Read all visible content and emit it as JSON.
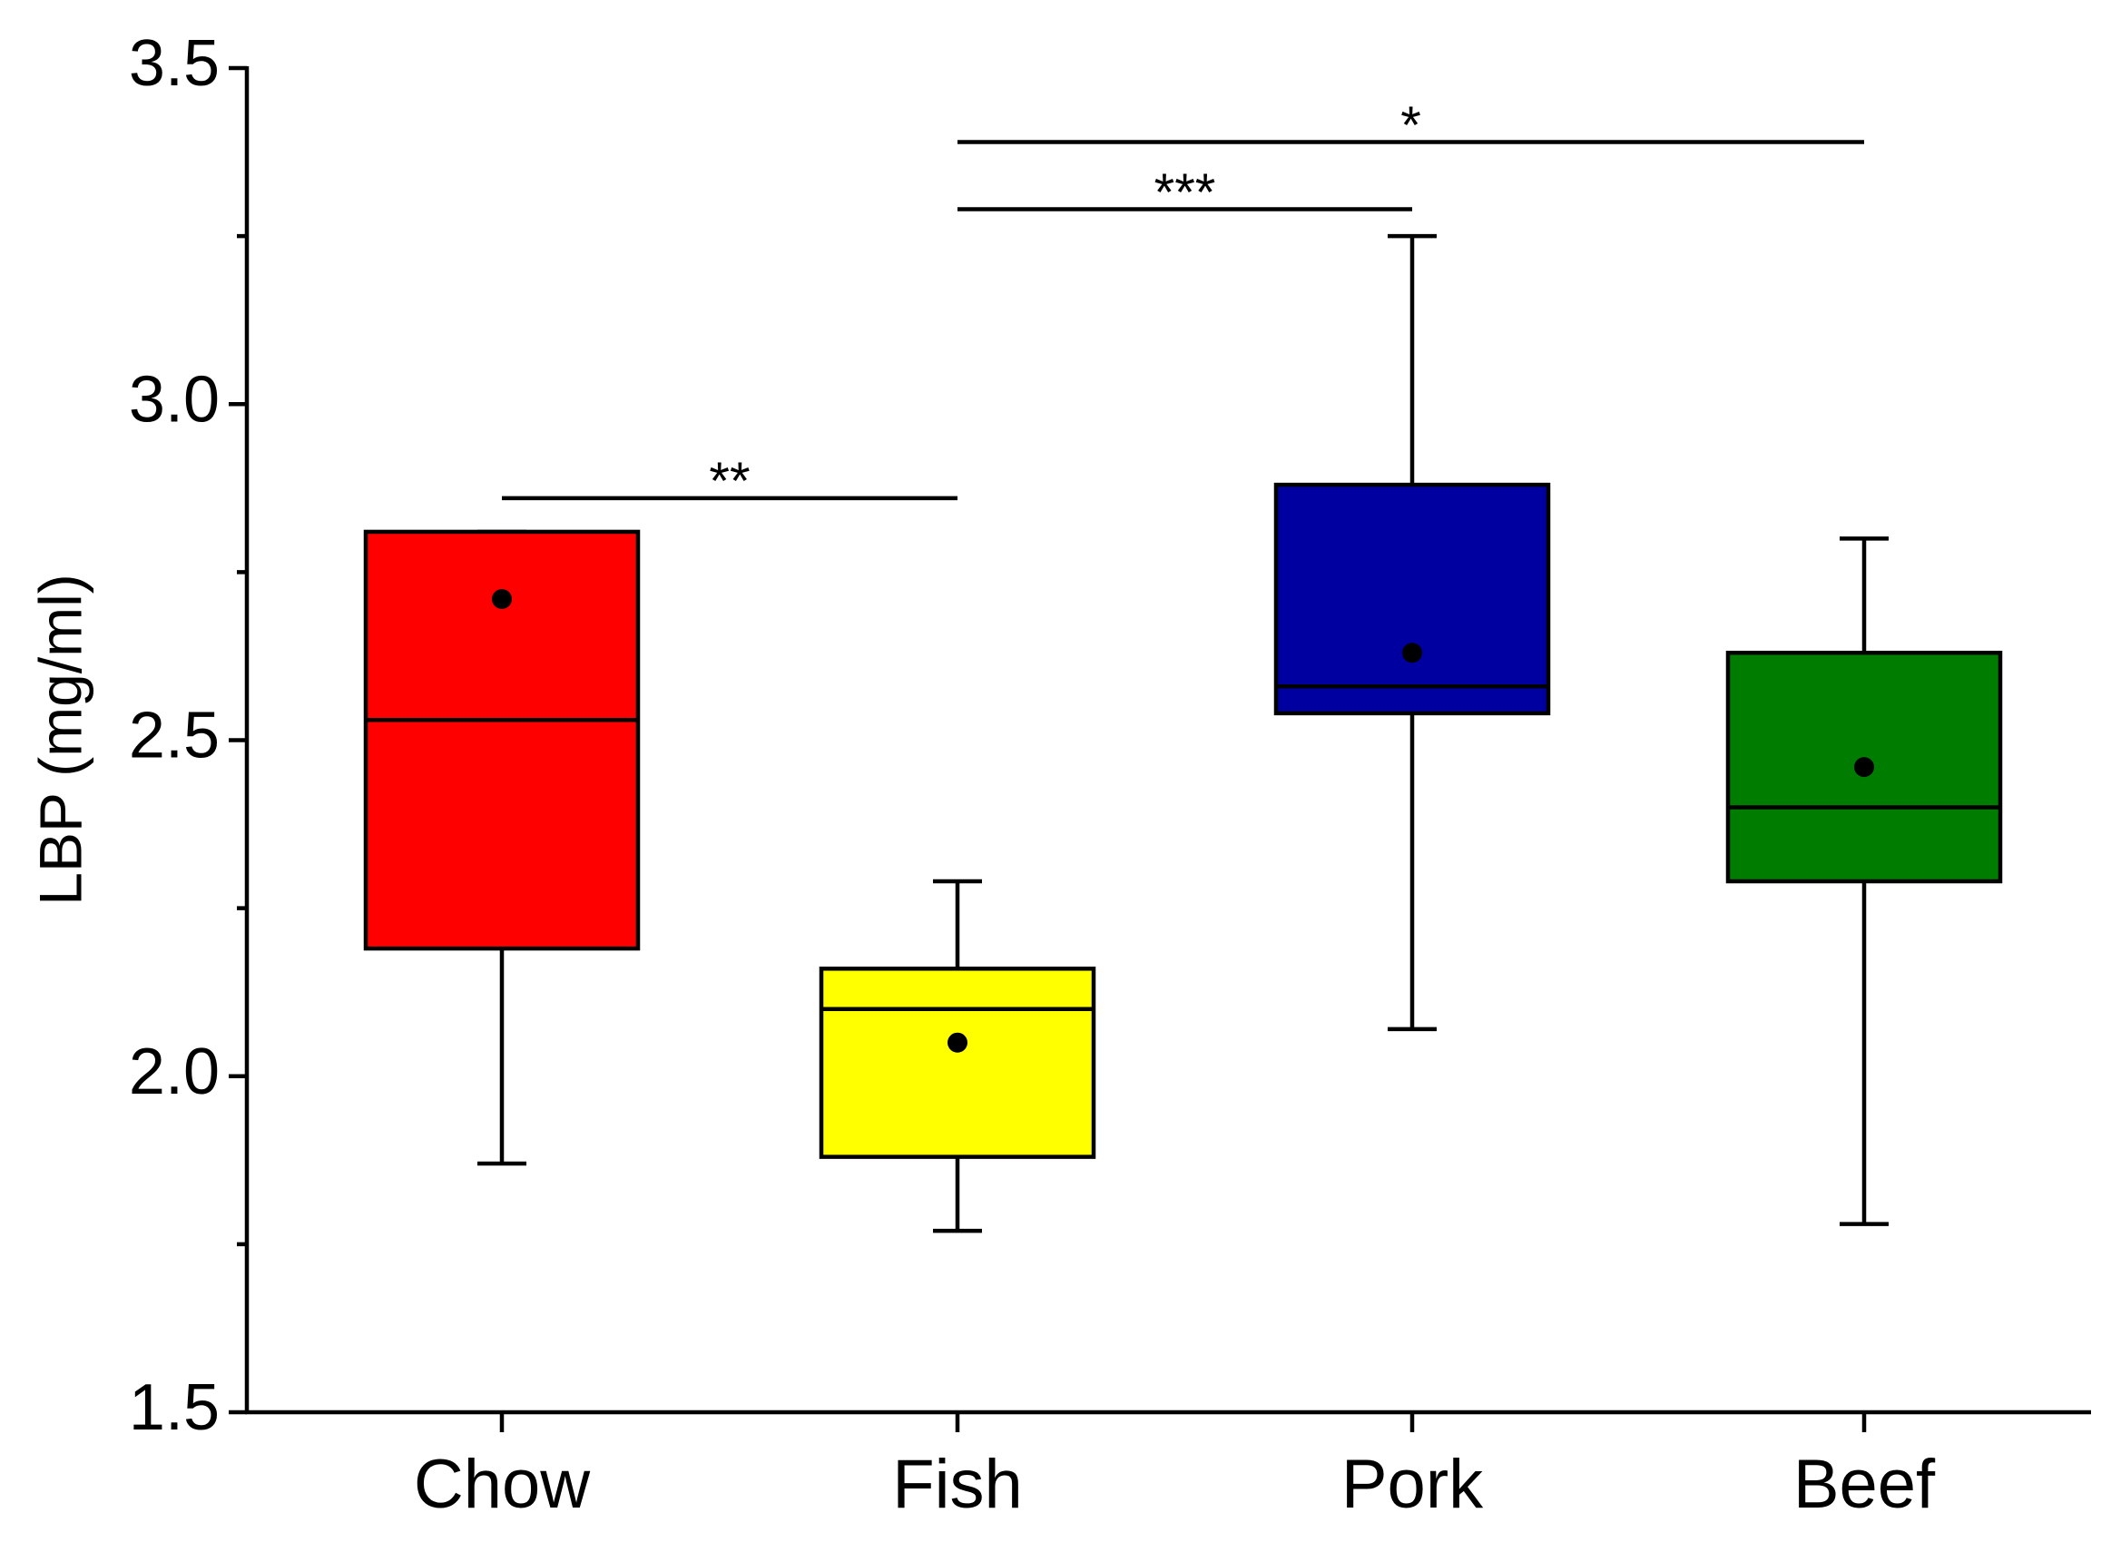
{
  "chart_data": {
    "type": "box",
    "y_label": "LBP (mg/ml)",
    "categories": [
      "Chow",
      "Fish",
      "Pork",
      "Beef"
    ],
    "colors": [
      "#ff0000",
      "#ffff00",
      "#0000a0",
      "#007d00"
    ],
    "low": [
      1.87,
      1.77,
      2.07,
      1.78
    ],
    "q1": [
      2.19,
      1.88,
      2.54,
      2.29
    ],
    "median": [
      2.53,
      2.1,
      2.58,
      2.4
    ],
    "q3": [
      2.81,
      2.16,
      2.88,
      2.63
    ],
    "high": [
      2.81,
      2.29,
      3.25,
      2.8
    ],
    "mean": [
      2.71,
      2.05,
      2.63,
      2.46
    ],
    "ylim": [
      1.5,
      3.5
    ],
    "yticks": [
      {
        "value": 1.5,
        "label": "1.5"
      },
      {
        "value": 2,
        "label": "2.0"
      },
      {
        "value": 2.5,
        "label": "2.5"
      },
      {
        "value": 3,
        "label": "3.0"
      },
      {
        "value": 3.5,
        "label": "3.5"
      }
    ],
    "minor_yticks": [
      1.75,
      2.25,
      2.75,
      3.25
    ],
    "annotations": [
      {
        "label": "**",
        "from": "Chow",
        "to": "Fish",
        "y": 2.86
      },
      {
        "label": "***",
        "from": "Fish",
        "to": "Pork",
        "y": 3.29
      },
      {
        "label": "*",
        "from": "Fish",
        "to": "Beef",
        "y": 3.39
      }
    ]
  }
}
